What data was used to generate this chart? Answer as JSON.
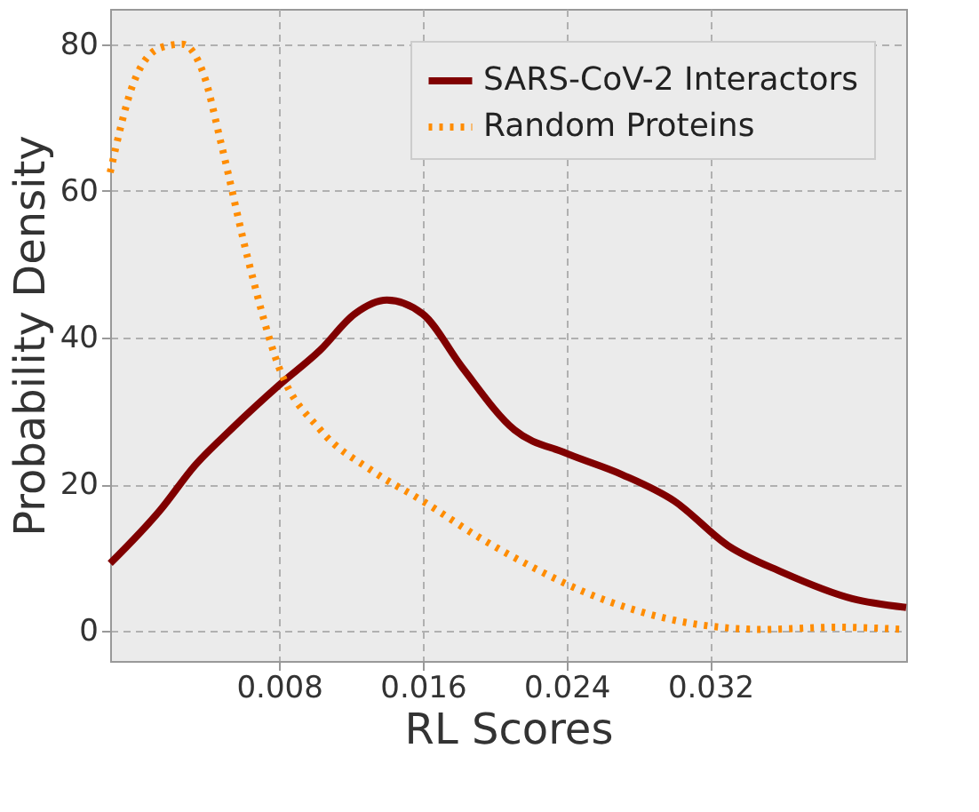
{
  "chart_data": {
    "type": "line",
    "xlabel": "RL Scores",
    "ylabel": "Probability Density",
    "xlim": [
      -0.0014,
      0.0429
    ],
    "ylim": [
      -4.1,
      84.8
    ],
    "xticks": [
      0.008,
      0.016,
      0.024,
      0.032
    ],
    "yticks": [
      0,
      20,
      40,
      60,
      80
    ],
    "grid": true,
    "legend": "top right",
    "series": [
      {
        "name": "SARS-CoV-2 Interactors",
        "color": "#800000",
        "line_style": "solid",
        "x": [
          -0.0014,
          0.0014,
          0.0033,
          0.0053,
          0.008,
          0.0103,
          0.0122,
          0.014,
          0.016,
          0.0182,
          0.0211,
          0.024,
          0.0271,
          0.03,
          0.033,
          0.036,
          0.0399,
          0.0429
        ],
        "values": [
          9.2,
          16.5,
          22.5,
          27.4,
          33.5,
          38.3,
          43.2,
          45.1,
          43.2,
          35.9,
          27.4,
          24.2,
          21.3,
          17.7,
          11.6,
          8.0,
          4.4,
          3.2
        ]
      },
      {
        "name": "Random Proteins",
        "color": "#ff8c00",
        "line_style": "dotted",
        "x": [
          -0.0014,
          -0.0001,
          0.0014,
          0.0026,
          0.0038,
          0.0048,
          0.0063,
          0.008,
          0.0103,
          0.0132,
          0.016,
          0.0191,
          0.0221,
          0.025,
          0.028,
          0.031,
          0.035,
          0.0389,
          0.0429
        ],
        "values": [
          62.5,
          74.7,
          79.5,
          80,
          75.9,
          66.2,
          50.4,
          35.9,
          27.4,
          21.8,
          17.7,
          12.8,
          8.7,
          5.3,
          2.7,
          1.0,
          0.2,
          0.5,
          0.2
        ]
      }
    ]
  }
}
